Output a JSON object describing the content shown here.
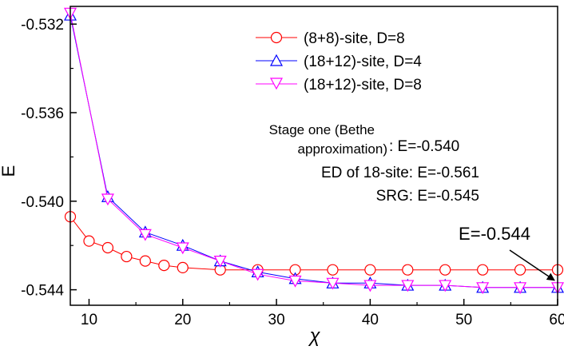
{
  "chart_data": {
    "type": "line",
    "xlabel": "χ",
    "ylabel": "E",
    "xlim": [
      8,
      60
    ],
    "ylim": [
      -0.5447,
      -0.5312
    ],
    "xticks": [
      10,
      20,
      30,
      40,
      50,
      60
    ],
    "xtick_labels": [
      "10",
      "20",
      "30",
      "40",
      "50",
      "60"
    ],
    "yticks": [
      -0.532,
      -0.536,
      -0.54,
      -0.544
    ],
    "ytick_labels": [
      "-0.532",
      "-0.536",
      "-0.540",
      "-0.544"
    ],
    "grid": false,
    "legend_position": "top-right",
    "series": [
      {
        "name": "(8+8)-site, D=8",
        "color": "#ff0000",
        "marker": "circle",
        "x": [
          8,
          10,
          12,
          14,
          16,
          18,
          20,
          24,
          28,
          32,
          36,
          40,
          44,
          48,
          52,
          56,
          60
        ],
        "y": [
          -0.5407,
          -0.5418,
          -0.5421,
          -0.5425,
          -0.5427,
          -0.5429,
          -0.543,
          -0.5431,
          -0.5431,
          -0.5431,
          -0.5431,
          -0.5431,
          -0.5431,
          -0.5431,
          -0.5431,
          -0.5431,
          -0.5431
        ]
      },
      {
        "name": "(18+12)-site, D=4",
        "color": "#0000ff",
        "marker": "triangle-up",
        "x": [
          8,
          12,
          16,
          20,
          24,
          28,
          32,
          36,
          40,
          44,
          48,
          52,
          56,
          60
        ],
        "y": [
          -0.5316,
          -0.5398,
          -0.5414,
          -0.542,
          -0.5427,
          -0.5432,
          -0.5435,
          -0.5437,
          -0.5437,
          -0.5438,
          -0.5438,
          -0.5439,
          -0.5439,
          -0.5439
        ]
      },
      {
        "name": "(18+12)-site, D=8",
        "color": "#ff00ff",
        "marker": "triangle-down",
        "x": [
          8,
          12,
          16,
          20,
          24,
          28,
          32,
          36,
          40,
          44,
          48,
          52,
          56,
          60
        ],
        "y": [
          -0.5315,
          -0.5399,
          -0.5415,
          -0.5421,
          -0.5427,
          -0.5433,
          -0.5436,
          -0.5437,
          -0.5438,
          -0.5438,
          -0.5438,
          -0.5439,
          -0.5439,
          -0.5439
        ]
      }
    ],
    "annotations": {
      "stage_one_line1": "Stage one (Bethe",
      "stage_one_line2": "approximation)",
      "stage_one_value": ": E=-0.540",
      "ed": "ED of 18-site: E=-0.561",
      "srg": "SRG: E=-0.545",
      "arrow_label": "E=-0.544",
      "arrow_target": {
        "x": 60,
        "y": -0.5439
      }
    }
  }
}
